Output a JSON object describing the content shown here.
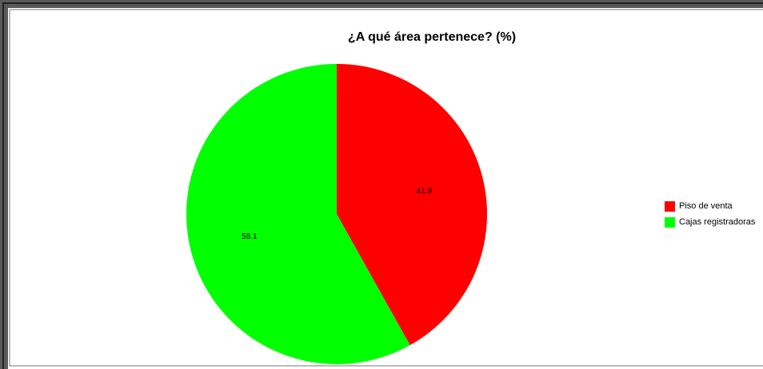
{
  "chart_data": {
    "type": "pie",
    "title": "¿A qué área pertenece? (%)",
    "categories": [
      "Piso de venta",
      "Cajas registradoras"
    ],
    "values": [
      41.9,
      58.1
    ],
    "colors": [
      "#ff0000",
      "#00ff00"
    ],
    "legend": "right"
  }
}
